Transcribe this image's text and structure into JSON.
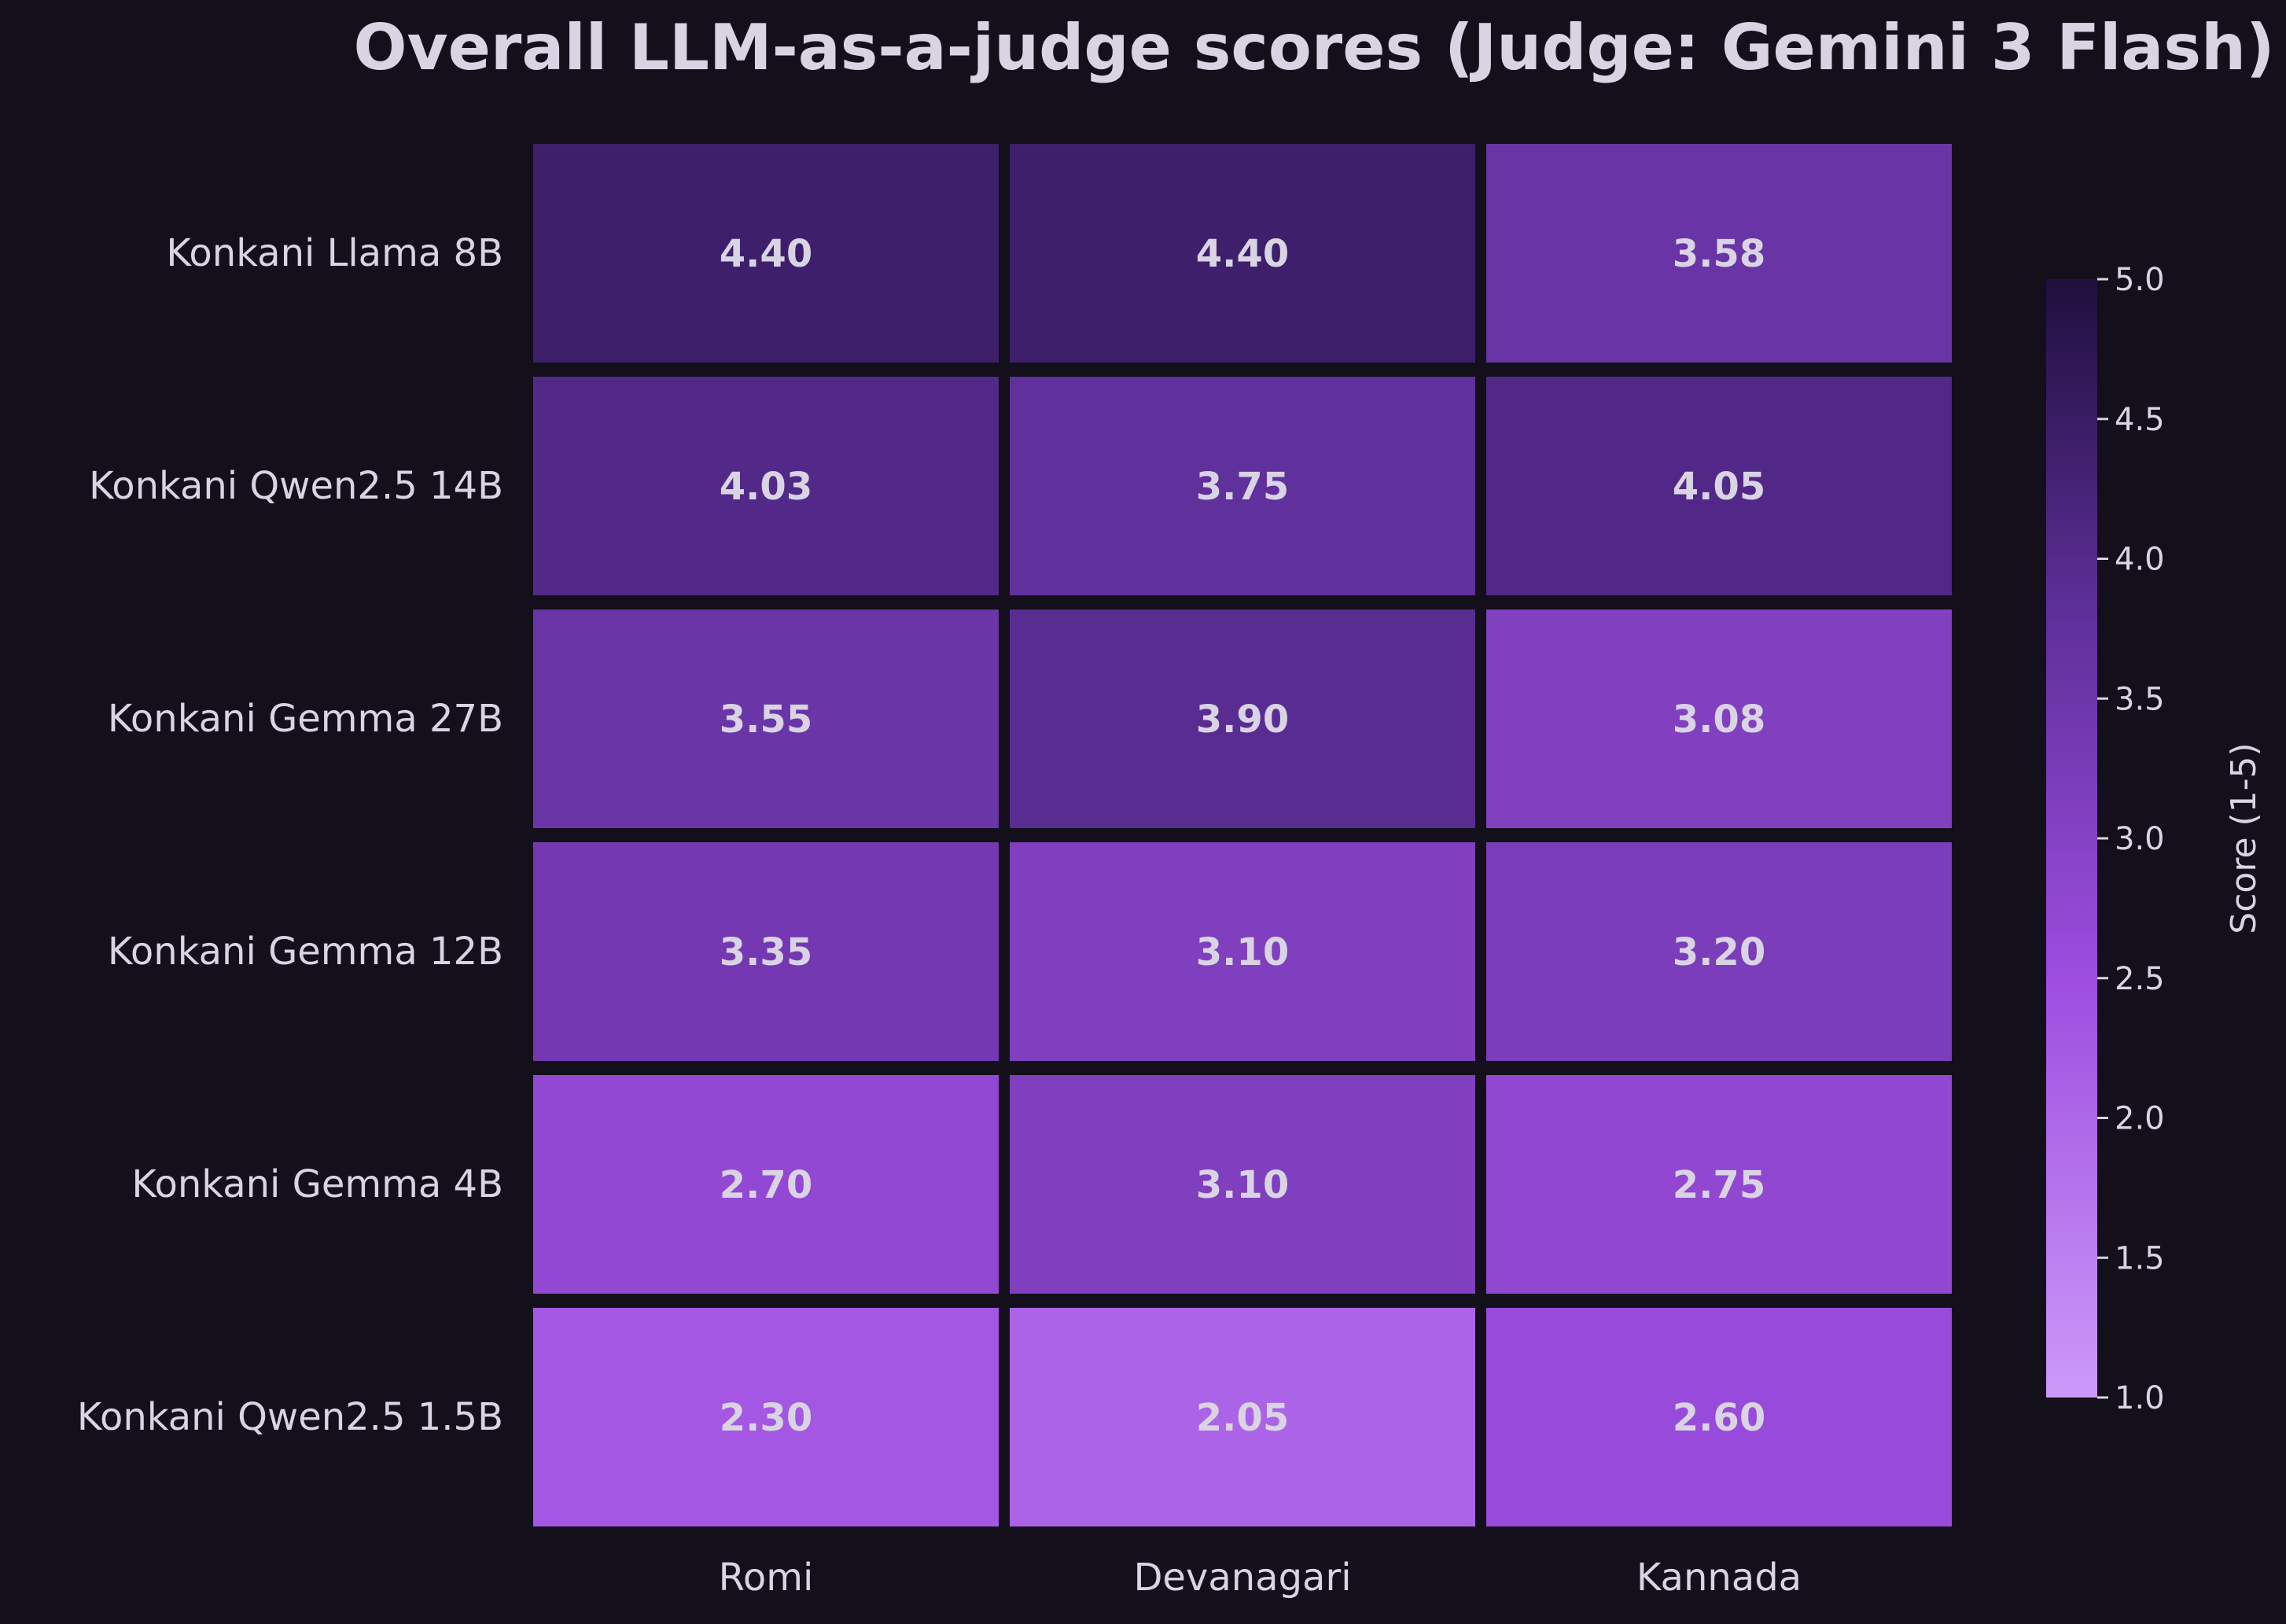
{
  "chart_data": {
    "type": "heatmap",
    "title": "Overall LLM-as-a-judge scores (Judge: Gemini 3 Flash)",
    "x_categories": [
      "Romi",
      "Devanagari",
      "Kannada"
    ],
    "y_categories": [
      "Konkani Llama 8B",
      "Konkani Qwen2.5 14B",
      "Konkani Gemma 27B",
      "Konkani Gemma 12B",
      "Konkani Gemma 4B",
      "Konkani Qwen2.5 1.5B"
    ],
    "values": [
      [
        4.4,
        4.4,
        3.58
      ],
      [
        4.03,
        3.75,
        4.05
      ],
      [
        3.55,
        3.9,
        3.08
      ],
      [
        3.35,
        3.1,
        3.2
      ],
      [
        2.7,
        3.1,
        2.75
      ],
      [
        2.3,
        2.05,
        2.6
      ]
    ],
    "value_labels": [
      [
        "4.40",
        "4.40",
        "3.58"
      ],
      [
        "4.03",
        "3.75",
        "4.05"
      ],
      [
        "3.55",
        "3.90",
        "3.08"
      ],
      [
        "3.35",
        "3.10",
        "3.20"
      ],
      [
        "2.70",
        "3.10",
        "2.75"
      ],
      [
        "2.30",
        "2.05",
        "2.60"
      ]
    ],
    "colorbar": {
      "label": "Score (1-5)",
      "range": [
        1.0,
        5.0
      ],
      "ticks": [
        "1.0",
        "1.5",
        "2.0",
        "2.5",
        "3.0",
        "3.5",
        "4.0",
        "4.5",
        "5.0"
      ],
      "colors": [
        "#cc99f9",
        "#9d4ddf",
        "#5e2f9a",
        "#1f0f3d"
      ]
    },
    "colors": {
      "background": "#130f1b",
      "text": "#d9d4e3"
    }
  }
}
